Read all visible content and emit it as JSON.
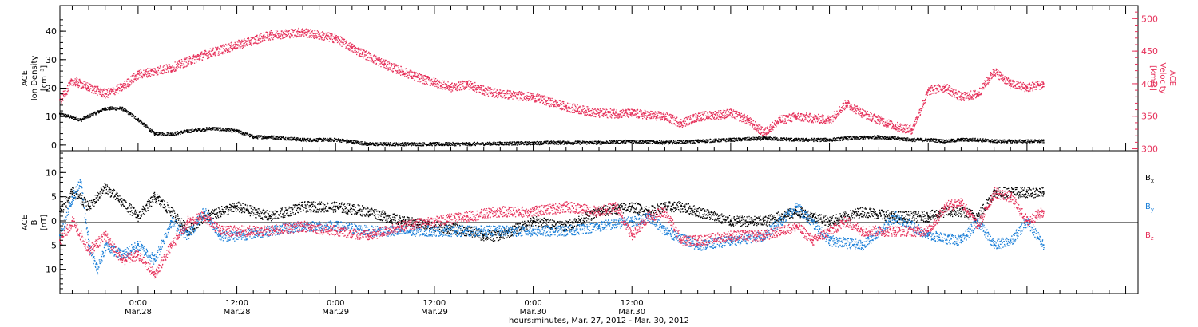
{
  "chart_data": [
    {
      "type": "scatter",
      "panel": "top",
      "ylabel_left": [
        "ACE",
        "Ion Density",
        "[cm⁻³]"
      ],
      "ylabel_right": [
        "ACE",
        "Velocity",
        "[km/s]"
      ],
      "left_ticks": [
        "0",
        "10",
        "20",
        "30",
        "40"
      ],
      "right_ticks": [
        "300",
        "350",
        "400",
        "450",
        "500"
      ],
      "ylim_left": [
        -2,
        49
      ],
      "ylim_right": [
        297,
        520
      ],
      "x_units": "hours since Mar. 27, 2012 00:00",
      "series": [
        {
          "name": "Ion Density",
          "axis": "left",
          "color": "#000000",
          "x": [
            14.5,
            17,
            20,
            22,
            24,
            26,
            28,
            30,
            33,
            36,
            38,
            40,
            44,
            48,
            52,
            56,
            60,
            64,
            68,
            72,
            74,
            76,
            80,
            84,
            88,
            92,
            96,
            100,
            104,
            108,
            110,
            114,
            118,
            120,
            122,
            124,
            126,
            128,
            130,
            134
          ],
          "y": [
            11,
            9,
            13,
            13,
            9,
            4,
            4,
            5,
            6,
            5,
            3,
            3,
            2,
            2,
            0.5,
            0.5,
            0.5,
            0.5,
            0.7,
            0.8,
            1,
            1,
            1,
            1.5,
            1,
            1.5,
            2,
            2.5,
            2,
            2,
            2.5,
            3,
            2,
            2,
            1.5,
            2,
            2,
            1.5,
            1.5,
            1.5
          ]
        },
        {
          "name": "Velocity",
          "axis": "right",
          "color": "#e6305a",
          "x": [
            14.5,
            16,
            18,
            20,
            22,
            24,
            28,
            32,
            36,
            40,
            44,
            48,
            50,
            54,
            58,
            62,
            64,
            66,
            68,
            72,
            76,
            80,
            84,
            88,
            90,
            92,
            96,
            98,
            100,
            102,
            104,
            108,
            110,
            112,
            114,
            116,
            118,
            120,
            122,
            124,
            126,
            128,
            130,
            132,
            134
          ],
          "y": [
            375,
            405,
            395,
            385,
            395,
            415,
            425,
            445,
            460,
            475,
            480,
            470,
            455,
            430,
            410,
            395,
            400,
            390,
            385,
            380,
            365,
            355,
            355,
            350,
            340,
            350,
            355,
            345,
            325,
            345,
            350,
            345,
            370,
            355,
            345,
            335,
            330,
            390,
            395,
            380,
            385,
            420,
            400,
            395,
            400
          ]
        }
      ]
    },
    {
      "type": "scatter",
      "panel": "bottom",
      "ylabel_left": [
        "ACE",
        "B",
        "[nT]"
      ],
      "left_ticks": [
        "-10",
        "-5",
        "0",
        "5",
        "10"
      ],
      "ylim": [
        -15,
        14.5
      ],
      "x_units": "hours since Mar. 27, 2012 00:00",
      "series": [
        {
          "name": "Bx",
          "color": "#000000",
          "x": [
            14.5,
            16,
            18,
            20,
            22,
            24,
            26,
            28,
            30,
            32,
            34,
            36,
            40,
            44,
            48,
            52,
            56,
            60,
            64,
            66,
            68,
            72,
            76,
            80,
            84,
            86,
            88,
            90,
            92,
            96,
            100,
            104,
            106,
            108,
            112,
            116,
            120,
            122,
            124,
            126,
            128,
            130,
            132,
            134
          ],
          "y": [
            2,
            6,
            3,
            7,
            4,
            1,
            5,
            2,
            -2,
            1,
            2,
            3,
            1,
            3,
            3,
            2,
            0,
            -1,
            -2,
            -3,
            -3,
            0,
            -1,
            2,
            3,
            2,
            3,
            3,
            2,
            0,
            0,
            2,
            1,
            0,
            2,
            1,
            1,
            2,
            2,
            1,
            6,
            6,
            6,
            6
          ]
        },
        {
          "name": "By",
          "color": "#1a7fd8",
          "x": [
            14.5,
            16,
            17,
            18,
            19,
            20,
            22,
            24,
            26,
            28,
            30,
            32,
            34,
            36,
            40,
            44,
            48,
            52,
            56,
            60,
            64,
            68,
            72,
            76,
            80,
            84,
            86,
            88,
            92,
            96,
            100,
            104,
            108,
            112,
            116,
            120,
            124,
            126,
            128,
            130,
            132,
            134
          ],
          "y": [
            -3,
            5,
            8,
            -5,
            -10,
            -5,
            -7,
            -5,
            -8,
            0,
            -3,
            2,
            -3,
            -3,
            -2,
            -1,
            -1,
            -2,
            -2,
            -2,
            -2,
            -2,
            -2,
            -2,
            -1,
            0,
            1,
            -2,
            -5,
            -4,
            -3,
            3,
            -4,
            -5,
            1,
            -3,
            -4,
            0,
            -5,
            -4,
            0,
            -5
          ]
        },
        {
          "name": "Bz",
          "color": "#e6305a",
          "x": [
            14.5,
            16,
            18,
            20,
            22,
            24,
            26,
            28,
            30,
            32,
            34,
            36,
            40,
            44,
            48,
            52,
            56,
            60,
            64,
            68,
            72,
            76,
            80,
            82,
            84,
            86,
            88,
            90,
            92,
            96,
            100,
            104,
            106,
            108,
            110,
            112,
            116,
            120,
            122,
            124,
            126,
            128,
            130,
            132,
            134
          ],
          "y": [
            -4,
            0,
            -6,
            -3,
            -8,
            -7,
            -11,
            -5,
            0,
            1,
            -2,
            -2,
            -2,
            -1,
            -2,
            -3,
            -1,
            0,
            1,
            2,
            2,
            3,
            2,
            3,
            -3,
            1,
            2,
            -4,
            -4,
            -3,
            -3,
            -1,
            -4,
            -2,
            0,
            -2,
            -2,
            -2,
            3,
            4,
            -1,
            6,
            5,
            0,
            2
          ]
        }
      ],
      "legend": [
        "B",
        "B",
        "B"
      ],
      "legend_sub": [
        "x",
        "y",
        "z"
      ]
    }
  ],
  "x_axis": {
    "tick_times": [
      "0:00",
      "12:00",
      "0:00",
      "12:00",
      "0:00",
      "12:00"
    ],
    "tick_dates": [
      "Mar.28",
      "Mar.28",
      "Mar.29",
      "Mar.29",
      "Mar.30",
      "Mar.30"
    ],
    "tick_hours": [
      24,
      36,
      48,
      60,
      72,
      84
    ],
    "xlim_hours": [
      14.5,
      145.5
    ],
    "xlabel": "hours:minutes, Mar. 27, 2012 - Mar. 30, 2012"
  },
  "colors": {
    "black": "#000000",
    "pink": "#e6305a",
    "blue": "#1a7fd8"
  }
}
